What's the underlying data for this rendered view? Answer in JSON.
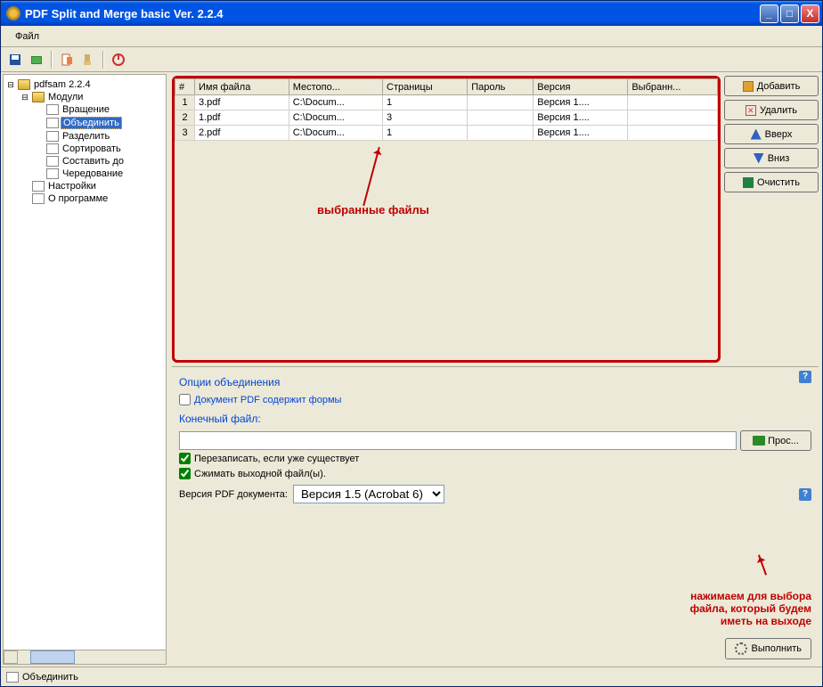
{
  "window": {
    "title": "PDF Split and Merge basic Ver. 2.2.4"
  },
  "titlebar_buttons": {
    "min": "_",
    "max": "□",
    "close": "X"
  },
  "menu": {
    "file": "Файл"
  },
  "sidebar": {
    "root": "pdfsam 2.2.4",
    "modules_label": "Модули",
    "items": [
      "Вращение",
      "Объединить",
      "Разделить",
      "Сортировать",
      "Составить до",
      "Чередование"
    ],
    "selected_index": 1,
    "settings": "Настройки",
    "about": "О программе"
  },
  "table": {
    "headers": [
      "#",
      "Имя файла",
      "Местопо...",
      "Страницы",
      "Пароль",
      "Версия",
      "Выбранн..."
    ],
    "rows": [
      {
        "n": "1",
        "name": "3.pdf",
        "loc": "C:\\Docum...",
        "pages": "1",
        "pwd": "",
        "ver": "Версия 1....",
        "sel": ""
      },
      {
        "n": "2",
        "name": "1.pdf",
        "loc": "C:\\Docum...",
        "pages": "3",
        "pwd": "",
        "ver": "Версия 1....",
        "sel": ""
      },
      {
        "n": "3",
        "name": "2.pdf",
        "loc": "C:\\Docum...",
        "pages": "1",
        "pwd": "",
        "ver": "Версия 1....",
        "sel": ""
      }
    ]
  },
  "buttons": {
    "add": "Добавить",
    "delete": "Удалить",
    "up": "Вверх",
    "down": "Вниз",
    "clear": "Очистить",
    "browse": "Прос...",
    "execute": "Выполнить"
  },
  "callouts": {
    "selected_files": "выбранные файлы",
    "browse_hint_l1": "нажимаем для выбора",
    "browse_hint_l2": "файла, который будем",
    "browse_hint_l3": "иметь на выходе"
  },
  "options": {
    "section_label": "Опции объединения",
    "forms_checkbox": "Документ PDF содержит формы",
    "output_label": "Конечный файл:",
    "overwrite": "Перезаписать, если уже существует",
    "compress": "Сжимать выходной файл(ы).",
    "version_label": "Версия PDF документа:",
    "version_value": "Версия 1.5 (Acrobat 6)"
  },
  "status": {
    "text": "Объединить"
  },
  "colors": {
    "accent_red": "#c00000",
    "link_blue": "#0046d5",
    "selection": "#316ac5",
    "add_ico": "#e0a030",
    "del_ico": "#d04040",
    "up_ico": "#3060c0",
    "down_ico": "#3060c0",
    "clear_ico": "#208040"
  }
}
